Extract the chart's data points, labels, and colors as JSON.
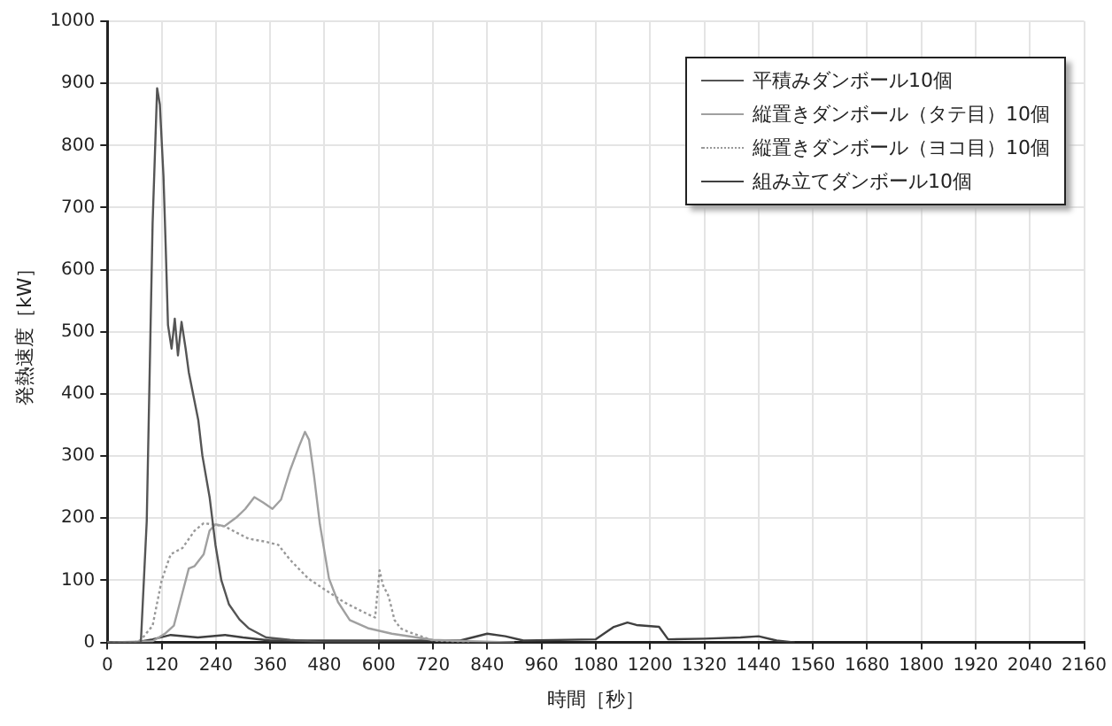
{
  "chart_data": {
    "type": "line",
    "xlabel": "時間［秒］",
    "ylabel": "発熱速度［kW］",
    "xlim": [
      0,
      2160
    ],
    "xticks": [
      0,
      120,
      240,
      360,
      480,
      600,
      720,
      840,
      960,
      1080,
      1200,
      1320,
      1440,
      1560,
      1680,
      1800,
      1920,
      2040,
      2160
    ],
    "ylim": [
      0,
      1000
    ],
    "yticks": [
      0,
      100,
      200,
      300,
      400,
      500,
      600,
      700,
      800,
      900,
      1000
    ],
    "grid": true,
    "legend": "top right",
    "marker": "none",
    "series": [
      {
        "name": "平積みダンボール10個",
        "color": "#555555",
        "line_style": "solid",
        "x": [
          0,
          61,
          74,
          87,
          100,
          110,
          116,
          124,
          129,
          134,
          142,
          149,
          156,
          164,
          173,
          180,
          193,
          201,
          210,
          226,
          239,
          252,
          269,
          292,
          312,
          351,
          404,
          480,
          600
        ],
        "values": [
          0,
          0,
          0,
          195,
          675,
          892,
          866,
          751,
          636,
          511,
          473,
          521,
          462,
          516,
          473,
          435,
          387,
          358,
          301,
          234,
          157,
          100,
          61,
          37,
          23,
          8,
          4,
          0,
          0
        ]
      },
      {
        "name": "縦置きダンボール（タテ目）10個",
        "color": "#a0a0a0",
        "line_style": "solid",
        "x": [
          0,
          100,
          127,
          147,
          166,
          180,
          193,
          213,
          226,
          239,
          259,
          285,
          305,
          325,
          345,
          365,
          384,
          404,
          424,
          437,
          446,
          457,
          470,
          490,
          510,
          536,
          576,
          629,
          720,
          800,
          900
        ],
        "values": [
          0,
          2,
          14,
          27,
          80,
          119,
          123,
          142,
          180,
          190,
          187,
          201,
          215,
          234,
          225,
          215,
          230,
          277,
          316,
          339,
          326,
          268,
          190,
          103,
          65,
          36,
          23,
          14,
          4,
          2,
          0
        ]
      },
      {
        "name": "縦置きダンボール（ヨコ目）10個",
        "color": "#999999",
        "line_style": "dotted",
        "x": [
          0,
          60,
          74,
          100,
          120,
          140,
          166,
          193,
          213,
          232,
          259,
          285,
          312,
          351,
          378,
          404,
          444,
          483,
          523,
          563,
          592,
          602,
          609,
          622,
          635,
          648,
          655,
          720,
          800
        ],
        "values": [
          0,
          0,
          4,
          27,
          100,
          142,
          152,
          180,
          192,
          190,
          187,
          177,
          167,
          162,
          157,
          133,
          103,
          84,
          65,
          50,
          40,
          116,
          93,
          74,
          36,
          23,
          20,
          3,
          0
        ]
      },
      {
        "name": "組み立てダンボール10個",
        "color": "#404040",
        "line_style": "solid",
        "x": [
          0,
          60,
          100,
          140,
          200,
          260,
          300,
          360,
          600,
          780,
          840,
          880,
          920,
          1080,
          1120,
          1150,
          1170,
          1220,
          1240,
          1320,
          1400,
          1440,
          1480,
          1520
        ],
        "values": [
          0,
          0,
          5,
          12,
          8,
          12,
          8,
          3,
          3,
          3,
          14,
          10,
          3,
          5,
          25,
          32,
          28,
          25,
          5,
          6,
          8,
          10,
          3,
          0
        ]
      }
    ]
  }
}
